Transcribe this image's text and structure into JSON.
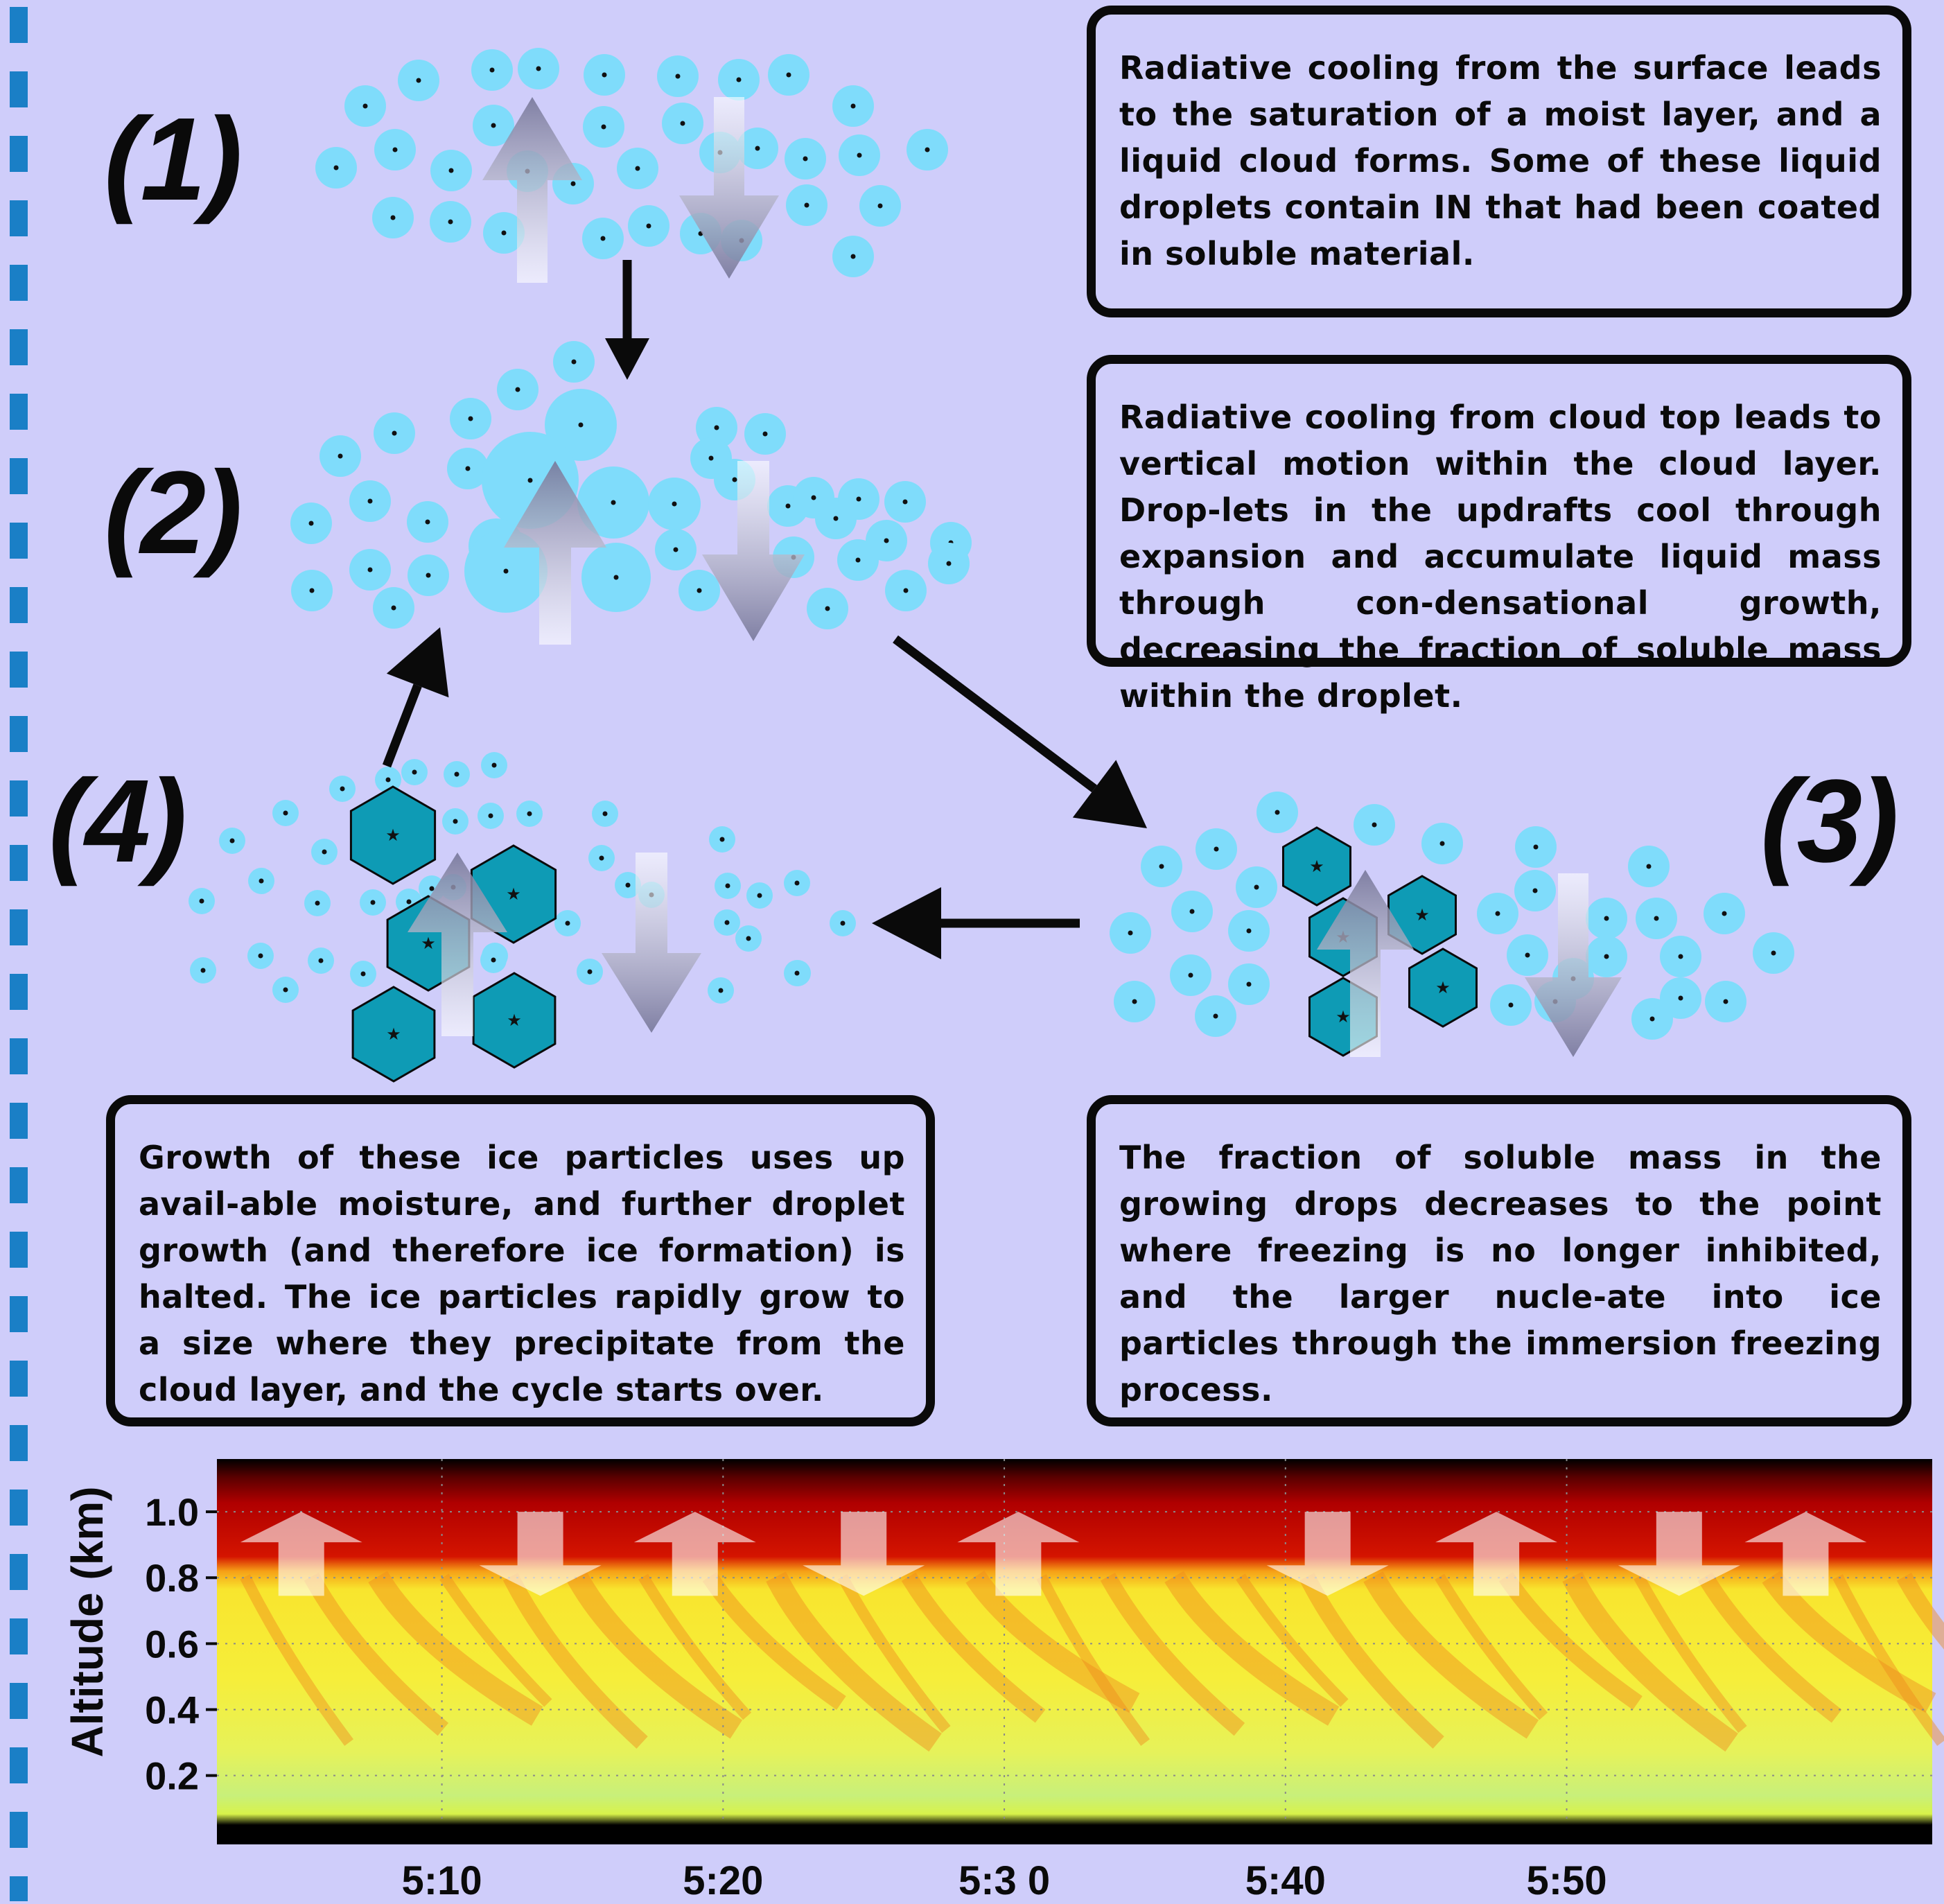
{
  "stages": [
    {
      "label": "(1)",
      "text": "Radiative cooling from the surface leads to the saturation of a moist layer, and a liquid cloud forms.  Some of these liquid droplets contain IN that had been coated in soluble material."
    },
    {
      "label": "(2)",
      "text": "Radiative cooling from cloud top leads to vertical motion within the cloud layer. Drop-lets in the updrafts cool through expansion and accumulate liquid mass through con-densational growth, decreasing the fraction of soluble mass within the droplet."
    },
    {
      "label": "(3)",
      "text": "The fraction of soluble mass in the growing drops decreases to the point where freezing is no longer inhibited, and the larger nucle-ate into ice particles through the immersion freezing process."
    },
    {
      "label": "(4)",
      "text": "Growth of these ice particles uses up avail-able moisture, and further droplet growth (and therefore ice formation) is halted.  The ice particles rapidly grow to a size where they precipitate from the cloud layer, and the cycle starts over."
    }
  ],
  "colors": {
    "background": "#cfcdfa",
    "droplet": "#7fdcfb",
    "ice": "#0e9bb5",
    "side_dash": "#1a7fc6"
  },
  "chart_data": {
    "type": "heatmap",
    "ylabel": "Altitude (km)",
    "xlabel": "",
    "y_ticks": [
      "1.0",
      "0.8",
      "0.6",
      "0.4",
      "0.2"
    ],
    "y_tick_values": [
      1.0,
      0.8,
      0.6,
      0.4,
      0.2
    ],
    "x_ticks": [
      "5:10",
      "5:20",
      "5:3 0",
      "5:40",
      "5:50"
    ],
    "x_tick_values": [
      10,
      20,
      30,
      40,
      50
    ],
    "xlim": [
      2,
      63
    ],
    "ylim": [
      0.05,
      1.16
    ],
    "cloud_top_km": 0.82,
    "motion_arrows": [
      "up",
      "down",
      "up",
      "down",
      "up",
      "down",
      "up",
      "down",
      "up"
    ],
    "motion_arrow_times": [
      5,
      13.5,
      19,
      25,
      30.5,
      41.5,
      47.5,
      54,
      58.5
    ],
    "grid": true,
    "legend": "none"
  }
}
